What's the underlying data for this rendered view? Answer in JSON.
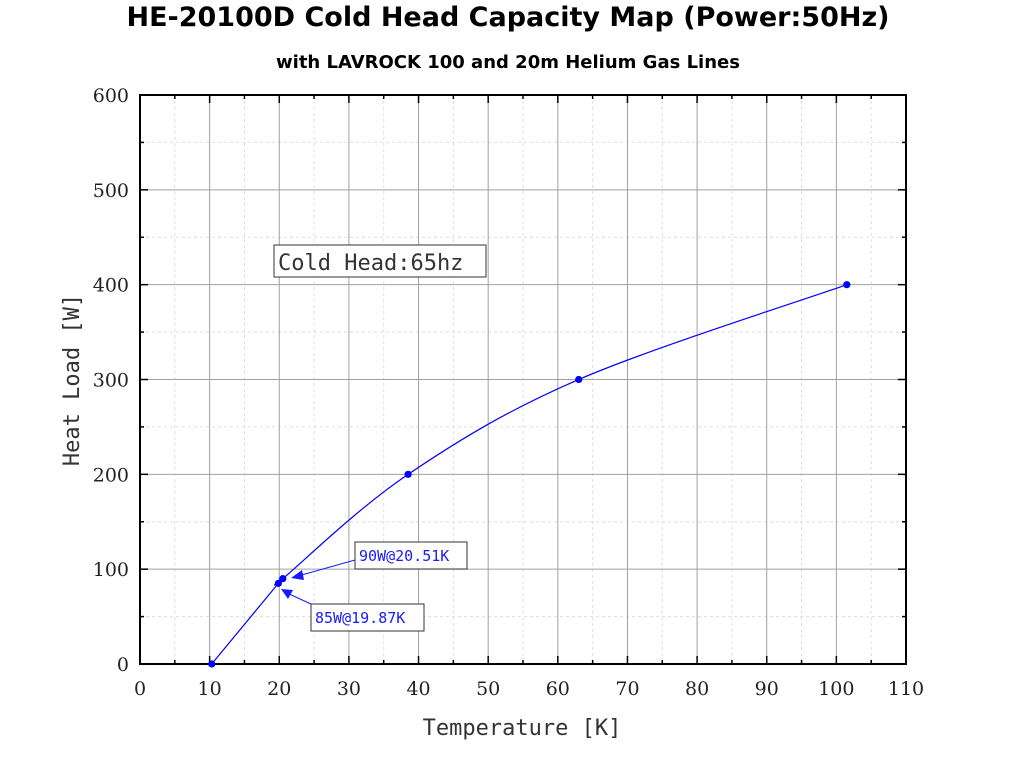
{
  "chart_data": {
    "type": "line",
    "title": "HE-20100D Cold Head Capacity Map (Power:50Hz)",
    "subtitle": "with LAVROCK 100 and 20m Helium Gas Lines",
    "xlabel": "Temperature [K]",
    "ylabel": "Heat Load [W]",
    "xlim": [
      0,
      110
    ],
    "ylim": [
      0,
      600
    ],
    "x_ticks": [
      "0",
      "10",
      "20",
      "30",
      "40",
      "50",
      "60",
      "70",
      "80",
      "90",
      "100",
      "110"
    ],
    "y_ticks": [
      "0",
      "100",
      "200",
      "300",
      "400",
      "500",
      "600"
    ],
    "grid": true,
    "series": [
      {
        "x": [
          10.3,
          19.87,
          20.51,
          38.5,
          63.0,
          101.5
        ],
        "y": [
          0,
          85,
          90,
          200,
          300,
          400
        ]
      }
    ],
    "annotations": [
      {
        "text": "Cold Head:65hz"
      },
      {
        "text": "90W@20.51K",
        "x": 20.51,
        "y": 90
      },
      {
        "text": "85W@19.87K",
        "x": 19.87,
        "y": 85
      }
    ],
    "colors": {
      "series": "#0000ff",
      "annotation": "#1a1aff",
      "grid_major": "#a0a0a0",
      "grid_minor": "#dedede"
    }
  }
}
